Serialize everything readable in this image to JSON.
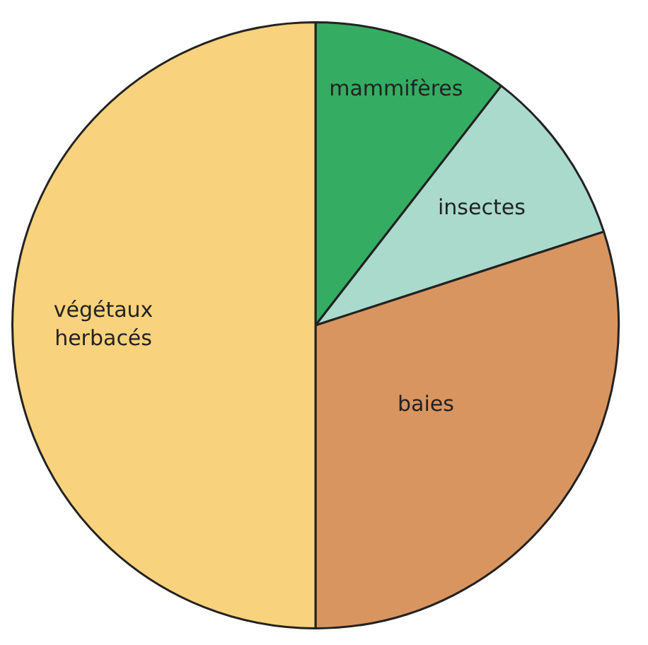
{
  "chart_data": {
    "type": "pie",
    "categories": [
      "mammifères",
      "insectes",
      "baies",
      "végétaux herbacés"
    ],
    "values": [
      10.5,
      9.5,
      30,
      50
    ],
    "colors": [
      "#34ad62",
      "#a9dacb",
      "#d99560",
      "#f8d27c"
    ]
  }
}
